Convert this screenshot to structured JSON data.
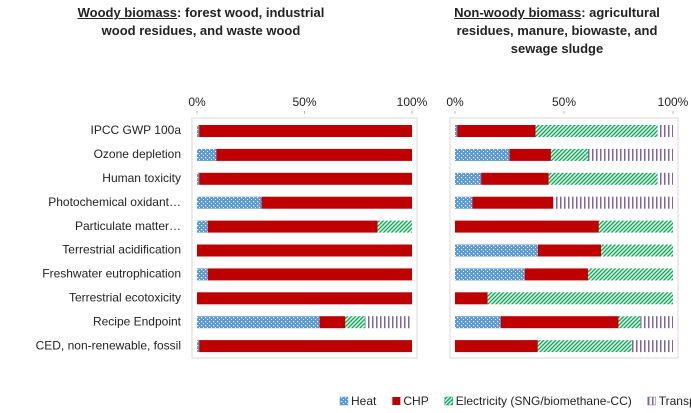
{
  "chart_data": [
    {
      "type": "stacked-bar-horizontal",
      "title_emphasis": "Woody biomass",
      "title": ": forest wood, industrial wood residues,  and waste wood",
      "categories": [
        "IPCC GWP 100a",
        "Ozone depletion",
        "Human toxicity",
        "Photochemical oxidant…",
        "Particulate matter…",
        "Terrestrial acidification",
        "Freshwater eutrophication",
        "Terrestrial ecotoxicity",
        "Recipe Endpoint",
        "CED, non-renewable, fossil"
      ],
      "xlim": [
        0,
        100
      ],
      "xticks": [
        {
          "value": 0,
          "label": "0%"
        },
        {
          "value": 50,
          "label": "50%"
        },
        {
          "value": 100,
          "label": "100%"
        }
      ],
      "series": [
        {
          "name": "Heat",
          "color": "#5b9bd5",
          "pattern": "dots",
          "values": [
            1,
            9,
            1,
            30,
            5,
            0,
            5,
            0,
            57,
            1
          ]
        },
        {
          "name": "CHP",
          "color": "#c00000",
          "pattern": "solid",
          "values": [
            99,
            91,
            99,
            70,
            79,
            100,
            95,
            100,
            12,
            99
          ]
        },
        {
          "name": "Electricity (SNG/biomethane-CC)",
          "color": "#00b050",
          "pattern": "diagonal",
          "values": [
            0,
            0,
            0,
            0,
            16,
            0,
            0,
            0,
            9,
            0
          ]
        },
        {
          "name": "Transportation",
          "color": "#8064a2",
          "pattern": "vertical",
          "values": [
            0,
            0,
            0,
            0,
            0,
            0,
            0,
            0,
            22,
            0
          ]
        }
      ]
    },
    {
      "type": "stacked-bar-horizontal",
      "title_emphasis": "Non-woody biomass",
      "title": ": agricultural residues, manure, biowaste, and sewage sludge",
      "xlim": [
        0,
        100
      ],
      "xticks": [
        {
          "value": 0,
          "label": "0%"
        },
        {
          "value": 50,
          "label": "50%"
        },
        {
          "value": 100,
          "label": "100%"
        }
      ],
      "series": [
        {
          "values": [
            1,
            25,
            12,
            8,
            0,
            38,
            32,
            0,
            21,
            0
          ]
        },
        {
          "values": [
            36,
            19,
            31,
            37,
            66,
            29,
            29,
            15,
            54,
            38
          ]
        },
        {
          "values": [
            56,
            17,
            50,
            0,
            34,
            33,
            39,
            85,
            10,
            43
          ]
        },
        {
          "values": [
            7,
            39,
            7,
            55,
            0,
            0,
            0,
            0,
            15,
            19
          ]
        }
      ]
    }
  ]
}
